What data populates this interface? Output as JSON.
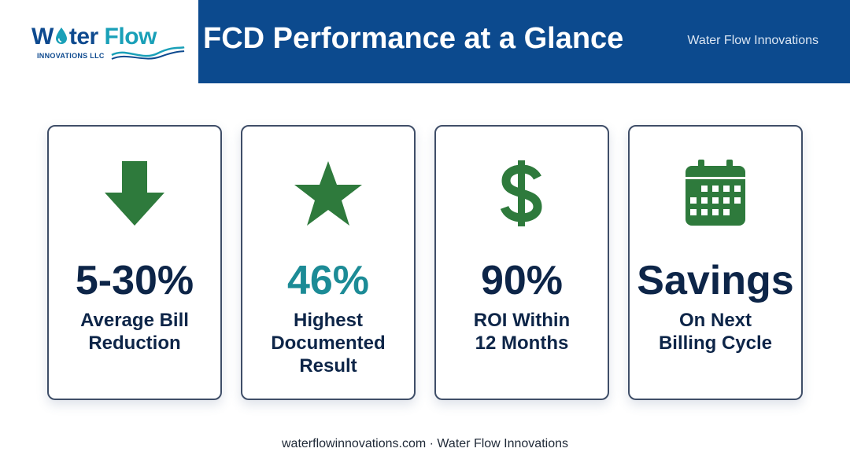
{
  "logo": {
    "name_part1": "W",
    "name_part2": "ter",
    "name_part3": "Flow",
    "subtitle": "INNOVATIONS LLC"
  },
  "header": {
    "title": "FCD Performance at a Glance",
    "brand": "Water Flow Innovations"
  },
  "cards": [
    {
      "icon": "arrow-down-icon",
      "value": "5-30%",
      "label_lines": [
        "Average Bill",
        "Reduction"
      ]
    },
    {
      "icon": "star-icon",
      "value": "46%",
      "label_lines": [
        "Highest",
        "Documented",
        "Result"
      ]
    },
    {
      "icon": "dollar-icon",
      "value": "90%",
      "label_lines": [
        "ROI Within",
        "12 Months"
      ]
    },
    {
      "icon": "calendar-icon",
      "value": "Savings",
      "label_lines": [
        "On Next",
        "Billing Cycle"
      ]
    }
  ],
  "footer": {
    "text": "waterflowinnovations.com · Water Flow Innovations"
  },
  "colors": {
    "header_bg": "#0c4a8e",
    "icon_green": "#2e7a3c",
    "value_navy": "#0d2548",
    "value_teal": "#1c8b96"
  }
}
